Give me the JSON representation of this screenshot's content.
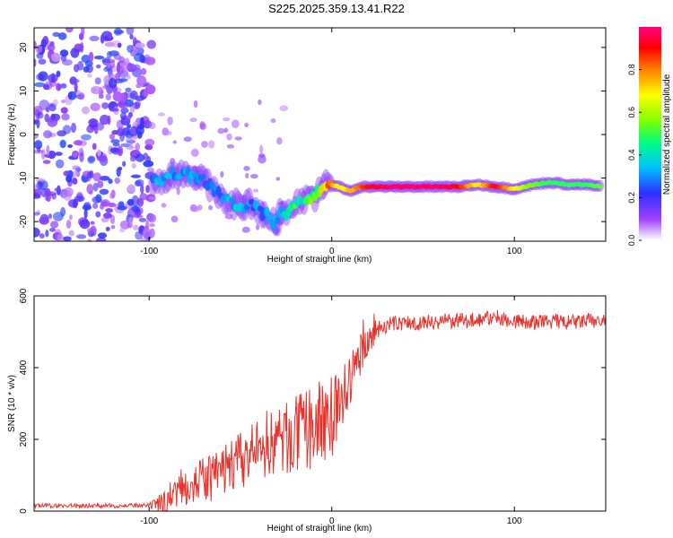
{
  "title": "S225.2025.359.13.41.R22",
  "chart_data": [
    {
      "type": "heatmap",
      "title": "S225.2025.359.13.41.R22",
      "xlabel": "Height of straight line (km)",
      "ylabel": "Frequency (Hz)",
      "xlim": [
        -163,
        150
      ],
      "ylim": [
        -24.5,
        24.5
      ],
      "x_ticks": [
        -100,
        0,
        100
      ],
      "y_ticks": [
        20,
        10,
        0,
        -10,
        -20
      ],
      "colorbar": {
        "label": "Normalized spectral amplitude",
        "range": [
          0,
          1
        ],
        "ticks": [
          "0.0",
          "0.2",
          "0.4",
          "0.6",
          "0.8"
        ],
        "colors": [
          "#ffffff",
          "#a040ff",
          "#3030ff",
          "#00c0ff",
          "#00ff80",
          "#80ff00",
          "#ffff00",
          "#ff8000",
          "#ff0000",
          "#ff0080"
        ]
      },
      "ridge": {
        "x": [
          -98,
          -92,
          -86,
          -80,
          -74,
          -68,
          -62,
          -56,
          -50,
          -44,
          -38,
          -32,
          -26,
          -20,
          -14,
          -8,
          -2,
          4,
          10,
          16,
          22,
          30,
          40,
          50,
          60,
          70,
          80,
          90,
          100,
          110,
          120,
          130,
          140,
          148
        ],
        "freq": [
          -11,
          -10.5,
          -9,
          -8.5,
          -10,
          -11,
          -14,
          -15.5,
          -16,
          -16.5,
          -18,
          -20,
          -18,
          -16,
          -14.5,
          -13.5,
          -11.5,
          -12,
          -13,
          -12,
          -12,
          -12,
          -12,
          -12,
          -12,
          -12,
          -11.5,
          -12,
          -12.5,
          -11.5,
          -11,
          -11.5,
          -11.5,
          -12
        ],
        "amplitude": [
          0.3,
          0.35,
          0.3,
          0.35,
          0.3,
          0.3,
          0.3,
          0.35,
          0.4,
          0.3,
          0.3,
          0.3,
          0.35,
          0.45,
          0.5,
          0.55,
          0.8,
          0.7,
          0.75,
          0.85,
          0.95,
          1.0,
          1.0,
          1.0,
          1.0,
          0.9,
          0.7,
          0.95,
          0.7,
          0.55,
          0.5,
          0.5,
          0.5,
          0.55
        ]
      },
      "noise_region": {
        "x_range": [
          -163,
          -98
        ],
        "freq_range": [
          -24.5,
          24.5
        ],
        "amplitude_range": [
          0.05,
          0.25
        ]
      }
    },
    {
      "type": "line",
      "xlabel": "Height of straight line (km)",
      "ylabel": "SNR (10 * v/v)",
      "xlim": [
        -163,
        150
      ],
      "ylim": [
        0,
        600
      ],
      "x_ticks": [
        -100,
        0,
        100
      ],
      "y_ticks": [
        0,
        200,
        400,
        600
      ],
      "color": "#e8322b",
      "trend": {
        "x": [
          -163,
          -100,
          -92,
          -85,
          -75,
          -65,
          -55,
          -45,
          -35,
          -25,
          -15,
          -5,
          0,
          5,
          10,
          15,
          20,
          25,
          30,
          40,
          50,
          60,
          70,
          80,
          90,
          100,
          110,
          120,
          130,
          140,
          150
        ],
        "snr": [
          15,
          15,
          20,
          60,
          80,
          95,
          130,
          150,
          190,
          200,
          220,
          250,
          270,
          300,
          360,
          430,
          480,
          505,
          520,
          525,
          525,
          530,
          530,
          535,
          540,
          530,
          525,
          530,
          525,
          530,
          530
        ]
      },
      "noise_amplitude": {
        "x": [
          -163,
          -100,
          -90,
          -20,
          0,
          20,
          30,
          150
        ],
        "amp": [
          6,
          6,
          45,
          110,
          120,
          40,
          22,
          22
        ]
      }
    }
  ]
}
